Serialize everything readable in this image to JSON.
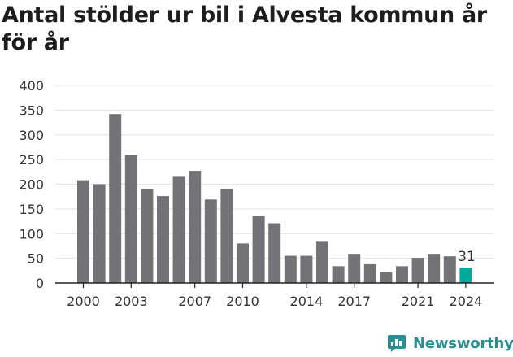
{
  "title": "Antal stölder ur bil i Alvesta kommun år för år",
  "brand": {
    "name": "Newsworthy",
    "logo_icon": "newsworthy-chart-logo-icon"
  },
  "colors": {
    "bar": "#737277",
    "highlight": "#00a99d",
    "grid": "#e3e3e3",
    "axis": "#222222",
    "brand": "#2a8f92"
  },
  "chart_data": {
    "type": "bar",
    "title": "Antal stölder ur bil i Alvesta kommun år för år",
    "xlabel": "",
    "ylabel": "",
    "categories": [
      2000,
      2001,
      2002,
      2003,
      2004,
      2005,
      2006,
      2007,
      2008,
      2009,
      2010,
      2011,
      2012,
      2013,
      2014,
      2015,
      2016,
      2017,
      2018,
      2019,
      2020,
      2021,
      2022,
      2023,
      2024
    ],
    "values": [
      208,
      200,
      342,
      260,
      191,
      176,
      215,
      227,
      169,
      191,
      80,
      136,
      121,
      55,
      55,
      85,
      34,
      59,
      38,
      22,
      34,
      51,
      59,
      54,
      31
    ],
    "highlight_index": 24,
    "annotations": [
      {
        "category": 2024,
        "text": "31"
      }
    ],
    "x_tick_labels": [
      "2000",
      "2003",
      "2007",
      "2010",
      "2014",
      "2017",
      "2021",
      "2024"
    ],
    "y_ticks": [
      0,
      50,
      100,
      150,
      200,
      250,
      300,
      350,
      400
    ],
    "ylim": [
      0,
      400
    ],
    "grid": true,
    "legend": "none"
  }
}
